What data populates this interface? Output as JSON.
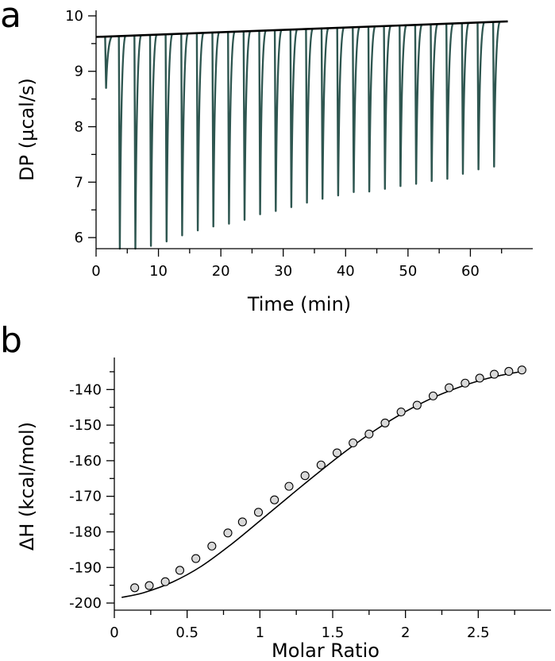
{
  "panels": {
    "a": "a",
    "b": "b"
  },
  "chart_data": [
    {
      "id": "a",
      "type": "line",
      "xlabel": "Time (min)",
      "ylabel": "DP (µcal/s)",
      "xlim": [
        0,
        70
      ],
      "ylim": [
        5.8,
        10.1
      ],
      "xticks": [
        0,
        10,
        20,
        30,
        40,
        50,
        60
      ],
      "yticks": [
        6,
        7,
        8,
        9,
        10
      ],
      "colors": {
        "trace": "#2e5650",
        "baseline": "#000000"
      },
      "baseline": {
        "x": [
          0,
          66
        ],
        "y": [
          9.62,
          9.9
        ]
      },
      "injections": [
        {
          "t": 1.6,
          "min": 8.7
        },
        {
          "t": 3.8,
          "min": 5.8
        },
        {
          "t": 6.3,
          "min": 5.8
        },
        {
          "t": 8.8,
          "min": 5.85
        },
        {
          "t": 11.3,
          "min": 5.93
        },
        {
          "t": 13.8,
          "min": 6.04
        },
        {
          "t": 16.3,
          "min": 6.13
        },
        {
          "t": 18.8,
          "min": 6.2
        },
        {
          "t": 21.3,
          "min": 6.25
        },
        {
          "t": 23.8,
          "min": 6.32
        },
        {
          "t": 26.3,
          "min": 6.42
        },
        {
          "t": 28.8,
          "min": 6.48
        },
        {
          "t": 31.3,
          "min": 6.55
        },
        {
          "t": 33.8,
          "min": 6.63
        },
        {
          "t": 36.3,
          "min": 6.7
        },
        {
          "t": 38.8,
          "min": 6.76
        },
        {
          "t": 41.3,
          "min": 6.82
        },
        {
          "t": 43.8,
          "min": 6.83
        },
        {
          "t": 46.3,
          "min": 6.88
        },
        {
          "t": 48.8,
          "min": 6.93
        },
        {
          "t": 51.3,
          "min": 6.97
        },
        {
          "t": 53.8,
          "min": 7.02
        },
        {
          "t": 56.3,
          "min": 7.06
        },
        {
          "t": 58.8,
          "min": 7.15
        },
        {
          "t": 61.3,
          "min": 7.23
        },
        {
          "t": 63.8,
          "min": 7.28
        }
      ]
    },
    {
      "id": "b",
      "type": "scatter",
      "xlabel": "Molar Ratio",
      "ylabel": "ΔH (kcal/mol)",
      "xlim": [
        0,
        3.0
      ],
      "ylim": [
        -202,
        -131
      ],
      "xticks": [
        0,
        0.5,
        1,
        1.5,
        2,
        2.5
      ],
      "xticklabels": [
        "0",
        "0.5",
        "1",
        "1.5",
        "2",
        "2.5"
      ],
      "yticks": [
        -200,
        -190,
        -180,
        -170,
        -160,
        -150,
        -140
      ],
      "points": {
        "x": [
          0.14,
          0.24,
          0.35,
          0.45,
          0.56,
          0.67,
          0.78,
          0.88,
          0.99,
          1.1,
          1.2,
          1.31,
          1.42,
          1.53,
          1.64,
          1.75,
          1.86,
          1.97,
          2.08,
          2.19,
          2.3,
          2.41,
          2.51,
          2.61,
          2.71,
          2.8
        ],
        "y": [
          -195.7,
          -195.1,
          -194.0,
          -190.8,
          -187.5,
          -184.0,
          -180.3,
          -177.2,
          -174.5,
          -171.0,
          -167.2,
          -164.2,
          -161.2,
          -157.8,
          -155.0,
          -152.5,
          -149.4,
          -146.3,
          -144.4,
          -141.8,
          -139.5,
          -138.2,
          -136.8,
          -135.7,
          -134.9,
          -134.5
        ]
      },
      "fit": {
        "x": [
          0.05,
          0.2,
          0.4,
          0.6,
          0.8,
          1.0,
          1.2,
          1.4,
          1.6,
          1.8,
          2.0,
          2.2,
          2.4,
          2.6,
          2.8
        ],
        "y": [
          -198.4,
          -197.1,
          -194.1,
          -189.6,
          -183.6,
          -176.9,
          -170.1,
          -163.4,
          -157.0,
          -151.2,
          -146.2,
          -142.1,
          -138.9,
          -136.5,
          -134.9
        ]
      },
      "colors": {
        "marker_fill": "#d9d9d9",
        "marker_edge": "#000000",
        "fit": "#000000"
      }
    }
  ]
}
